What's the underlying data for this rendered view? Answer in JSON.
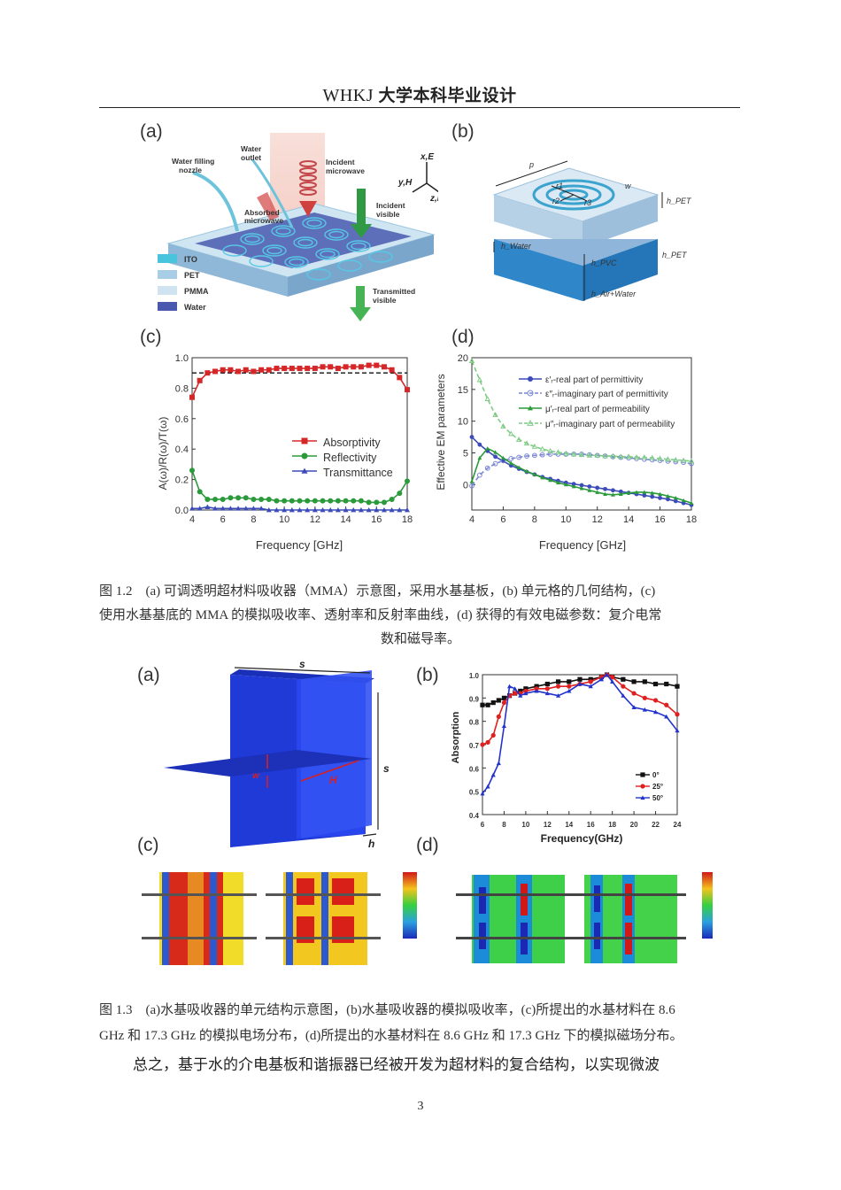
{
  "header": {
    "latin": "WHKJ",
    "chinese": "大学本科毕业设计"
  },
  "figure_1_2": {
    "panel_labels": [
      "(a)",
      "(b)",
      "(c)",
      "(d)"
    ],
    "a": {
      "labels": {
        "water_filling": "Water filling",
        "nozzle": "nozzle",
        "water": "Water",
        "outlet": "outlet",
        "incident": "Incident",
        "microwave": "microwave",
        "absorbed": "Absorbed",
        "absorbed_microwave": "microwave",
        "incident_visible": "Incident",
        "visible": "visible",
        "transmitted": "Transmitted",
        "transmitted_visible": "visible",
        "axis_x": "x,E",
        "axis_y": "y,H",
        "axis_z": "z,k"
      },
      "legend": [
        {
          "name": "ITO",
          "color": "#48c4dc"
        },
        {
          "name": "PET",
          "color": "#a8cde6"
        },
        {
          "name": "PMMA",
          "color": "#cfe3f0"
        },
        {
          "name": "Water",
          "color": "#4a59b0"
        }
      ]
    },
    "b": {
      "labels": {
        "p": "p",
        "w": "w",
        "r1": "r1",
        "r2": "r2",
        "r3": "r3",
        "h_pet_top": "h_PET",
        "h_water": "h_Water",
        "h_pvc": "h_PVC",
        "h_pet_bottom": "h_PET",
        "h_air_water": "h_Air+Water"
      }
    }
  },
  "chart_data": [
    {
      "id": "fig1.2c",
      "type": "line",
      "xlabel": "Frequency [GHz]",
      "ylabel": "A(ω)/R(ω)/T(ω)",
      "xlim": [
        4,
        18
      ],
      "ylim": [
        0.0,
        1.0
      ],
      "xticks": [
        4,
        6,
        8,
        10,
        12,
        14,
        16,
        18
      ],
      "yticks": [
        0.0,
        0.2,
        0.4,
        0.6,
        0.8,
        1.0
      ],
      "reference_line": 0.9,
      "legend_position": "center-right",
      "x": [
        4,
        4.5,
        5,
        5.5,
        6,
        6.5,
        7,
        7.5,
        8,
        8.5,
        9,
        9.5,
        10,
        10.5,
        11,
        11.5,
        12,
        12.5,
        13,
        13.5,
        14,
        14.5,
        15,
        15.5,
        16,
        16.5,
        17,
        17.5,
        18
      ],
      "series": [
        {
          "name": "Absorptivity",
          "color": "#d62728",
          "marker": "square",
          "values": [
            0.74,
            0.85,
            0.9,
            0.91,
            0.92,
            0.92,
            0.91,
            0.92,
            0.91,
            0.92,
            0.92,
            0.93,
            0.93,
            0.93,
            0.93,
            0.93,
            0.93,
            0.94,
            0.94,
            0.93,
            0.94,
            0.94,
            0.94,
            0.95,
            0.95,
            0.94,
            0.92,
            0.87,
            0.79
          ]
        },
        {
          "name": "Reflectivity",
          "color": "#2a9a3a",
          "marker": "circle",
          "values": [
            0.26,
            0.12,
            0.07,
            0.07,
            0.07,
            0.08,
            0.08,
            0.08,
            0.07,
            0.07,
            0.07,
            0.06,
            0.06,
            0.06,
            0.06,
            0.06,
            0.06,
            0.06,
            0.06,
            0.06,
            0.06,
            0.06,
            0.06,
            0.05,
            0.05,
            0.05,
            0.07,
            0.11,
            0.19
          ]
        },
        {
          "name": "Transmittance",
          "color": "#3b4bb8",
          "marker": "triangle",
          "values": [
            0.01,
            0.01,
            0.02,
            0.01,
            0.01,
            0.01,
            0.01,
            0.01,
            0.01,
            0.01,
            0.0,
            0.0,
            0.0,
            0.0,
            0.0,
            0.0,
            0.0,
            0.0,
            0.0,
            0.0,
            0.0,
            0.0,
            0.0,
            0.0,
            0.0,
            0.0,
            0.0,
            0.0,
            0.0
          ]
        }
      ]
    },
    {
      "id": "fig1.2d",
      "type": "line",
      "xlabel": "Frequency [GHz]",
      "ylabel": "Effective EM parameters",
      "xlim": [
        4,
        18
      ],
      "ylim": [
        -4,
        20
      ],
      "xticks": [
        4,
        6,
        8,
        10,
        12,
        14,
        16,
        18
      ],
      "yticks": [
        0,
        5,
        10,
        15,
        20
      ],
      "legend_position": "top-right",
      "x": [
        4,
        4.5,
        5,
        5.5,
        6,
        6.5,
        7,
        7.5,
        8,
        8.5,
        9,
        9.5,
        10,
        10.5,
        11,
        11.5,
        12,
        12.5,
        13,
        13.5,
        14,
        14.5,
        15,
        15.5,
        16,
        16.5,
        17,
        17.5,
        18
      ],
      "series": [
        {
          "name": "ε′ᵣ-real part of permittivity",
          "color": "#3b4bb8",
          "marker": "circle",
          "dash": false,
          "values": [
            7.5,
            6.3,
            5.3,
            4.4,
            3.7,
            3.0,
            2.5,
            2.0,
            1.6,
            1.2,
            0.9,
            0.6,
            0.3,
            0.1,
            -0.1,
            -0.3,
            -0.5,
            -0.7,
            -0.9,
            -1.1,
            -1.3,
            -1.5,
            -1.7,
            -1.9,
            -2.1,
            -2.3,
            -2.6,
            -2.9,
            -3.2
          ]
        },
        {
          "name": "ε″ᵣ-imaginary part of permittivity",
          "color": "#7a86d6",
          "marker": "open-circle",
          "dash": true,
          "values": [
            -0.2,
            1.5,
            2.6,
            3.3,
            3.8,
            4.1,
            4.3,
            4.5,
            4.6,
            4.7,
            4.8,
            4.8,
            4.8,
            4.8,
            4.8,
            4.7,
            4.6,
            4.5,
            4.4,
            4.3,
            4.2,
            4.1,
            4.0,
            3.9,
            3.8,
            3.7,
            3.6,
            3.5,
            3.3
          ]
        },
        {
          "name": "μ′ᵣ-real part of permeability",
          "color": "#2a9a3a",
          "marker": "triangle",
          "dash": false,
          "values": [
            0.5,
            4.2,
            5.7,
            5.1,
            4.2,
            3.4,
            2.7,
            2.1,
            1.6,
            1.1,
            0.7,
            0.3,
            0.0,
            -0.3,
            -0.6,
            -0.9,
            -1.2,
            -1.5,
            -1.6,
            -1.5,
            -1.3,
            -1.2,
            -1.2,
            -1.3,
            -1.5,
            -1.8,
            -2.1,
            -2.5,
            -2.9
          ]
        },
        {
          "name": "μ″ᵣ-imaginary part of permeability",
          "color": "#7fcc86",
          "marker": "open-triangle",
          "dash": true,
          "values": [
            19.5,
            16.5,
            13.5,
            11.0,
            9.2,
            8.0,
            7.1,
            6.5,
            6.0,
            5.6,
            5.3,
            5.1,
            4.9,
            4.8,
            4.7,
            4.6,
            4.6,
            4.5,
            4.5,
            4.4,
            4.4,
            4.3,
            4.3,
            4.2,
            4.1,
            4.0,
            3.9,
            3.8,
            3.7
          ]
        }
      ]
    },
    {
      "id": "fig1.3b",
      "type": "line",
      "xlabel": "Frequency(GHz)",
      "ylabel": "Absorption",
      "xlim": [
        6,
        24
      ],
      "ylim": [
        0.4,
        1.0
      ],
      "xticks": [
        6,
        8,
        10,
        12,
        14,
        16,
        18,
        20,
        22,
        24
      ],
      "yticks": [
        0.4,
        0.5,
        0.6,
        0.7,
        0.8,
        0.9,
        1.0
      ],
      "legend_position": "bottom-right",
      "x": [
        6,
        6.5,
        7,
        7.5,
        8,
        8.5,
        9,
        9.5,
        10,
        11,
        12,
        13,
        14,
        15,
        16,
        17,
        17.5,
        18,
        19,
        20,
        21,
        22,
        23,
        24
      ],
      "series": [
        {
          "name": "0°",
          "color": "#111111",
          "marker": "square",
          "values": [
            0.87,
            0.87,
            0.88,
            0.89,
            0.9,
            0.91,
            0.92,
            0.93,
            0.94,
            0.95,
            0.96,
            0.97,
            0.97,
            0.98,
            0.98,
            0.99,
            1.0,
            0.99,
            0.98,
            0.97,
            0.97,
            0.96,
            0.96,
            0.95
          ]
        },
        {
          "name": "25°",
          "color": "#e02020",
          "marker": "circle",
          "values": [
            0.7,
            0.71,
            0.74,
            0.82,
            0.88,
            0.91,
            0.92,
            0.92,
            0.93,
            0.94,
            0.94,
            0.95,
            0.95,
            0.96,
            0.97,
            0.99,
            1.0,
            0.99,
            0.95,
            0.92,
            0.9,
            0.89,
            0.87,
            0.83
          ]
        },
        {
          "name": "50°",
          "color": "#2233cc",
          "marker": "triangle",
          "values": [
            0.49,
            0.52,
            0.57,
            0.62,
            0.78,
            0.95,
            0.94,
            0.91,
            0.92,
            0.93,
            0.92,
            0.91,
            0.93,
            0.96,
            0.95,
            0.98,
            1.0,
            0.97,
            0.91,
            0.86,
            0.85,
            0.84,
            0.82,
            0.76
          ]
        }
      ]
    }
  ],
  "caption_1_2": {
    "line1": "图 1.2　(a) 可调透明超材料吸收器（MMA）示意图，采用水基基板，(b) 单元格的几何结构，(c)",
    "line2": "使用水基基底的 MMA 的模拟吸收率、透射率和反射率曲线，(d) 获得的有效电磁参数：复介电常",
    "line3": "数和磁导率。"
  },
  "figure_1_3": {
    "panel_labels": [
      "(a)",
      "(b)",
      "(c)",
      "(d)"
    ],
    "a": {
      "s_top": "s",
      "s_side": "s",
      "h": "h",
      "w": "w",
      "H": "H"
    }
  },
  "caption_1_3": {
    "line1": "图 1.3　(a)水基吸收器的单元结构示意图，(b)水基吸收器的模拟吸收率，(c)所提出的水基材料在 8.6",
    "line2": "GHz 和 17.3 GHz 的模拟电场分布，(d)所提出的水基材料在 8.6 GHz 和 17.3 GHz 下的模拟磁场分布。"
  },
  "paragraph": "总之，基于水的介电基板和谐振器已经被开发为超材料的复合结构，以实现微波",
  "page_number": "3"
}
